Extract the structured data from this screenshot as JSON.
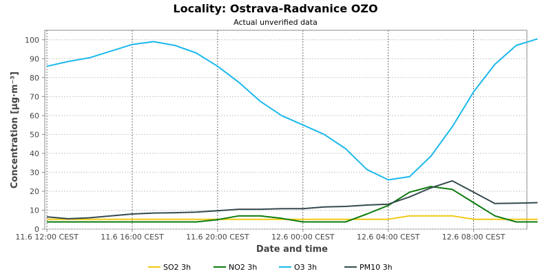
{
  "chart_data": {
    "type": "line",
    "title": "Locality: Ostrava-Radvanice OZO",
    "subtitle": "Actual unverified data",
    "xlabel": "Date and time",
    "ylabel": "Concentration [µg·m⁻³]",
    "ylim": [
      0,
      105
    ],
    "yticks": [
      0,
      10,
      20,
      30,
      40,
      50,
      60,
      70,
      80,
      90,
      100
    ],
    "xlim": [
      -0.1,
      22.5
    ],
    "xticks": [
      {
        "x": 0,
        "label": "11.6 12:00 CEST"
      },
      {
        "x": 4,
        "label": "11.6 16:00 CEST"
      },
      {
        "x": 8,
        "label": "11.6 20:00 CEST"
      },
      {
        "x": 12,
        "label": "12.6 00:00 CEST"
      },
      {
        "x": 16,
        "label": "12.6 04:00 CEST"
      },
      {
        "x": 20,
        "label": "12.6 08:00 CEST"
      }
    ],
    "grid": true,
    "legend_position": "bottom",
    "series": [
      {
        "name": "SO2 3h",
        "color": "#f2c811",
        "values": [
          5.2,
          5.2,
          5.2,
          5.2,
          5.2,
          5.2,
          5.2,
          5.2,
          5.2,
          5.2,
          5.2,
          5.2,
          5.2,
          5.2,
          5.2,
          5.2,
          5.2,
          7.0,
          7.0,
          7.0,
          5.2,
          5.2,
          5.2,
          5.2
        ]
      },
      {
        "name": "NO2 3h",
        "color": "#0a7a0a",
        "values": [
          3.8,
          3.8,
          3.8,
          3.8,
          3.8,
          3.8,
          3.8,
          3.8,
          5.0,
          7.0,
          7.0,
          5.7,
          3.8,
          3.8,
          3.8,
          8.0,
          12.5,
          19.5,
          22.5,
          21.0,
          14.0,
          7.0,
          3.8,
          3.8
        ]
      },
      {
        "name": "O3 3h",
        "color": "#1ab8ec",
        "values": [
          86,
          88.5,
          90.5,
          94,
          97.5,
          99,
          97,
          93,
          86,
          77.5,
          67.5,
          60,
          55,
          50,
          42.5,
          31.5,
          26,
          27.7,
          38.5,
          54,
          72.5,
          87,
          97,
          100.5
        ]
      },
      {
        "name": "PM10 3h",
        "color": "#34494e",
        "values": [
          6.5,
          5.5,
          6.0,
          7.0,
          8.0,
          8.5,
          8.7,
          9.0,
          9.7,
          10.5,
          10.5,
          10.8,
          10.8,
          11.7,
          12.0,
          12.7,
          13.2,
          17.0,
          21.8,
          25.5,
          19.5,
          13.5,
          13.7,
          14.0
        ]
      }
    ]
  }
}
